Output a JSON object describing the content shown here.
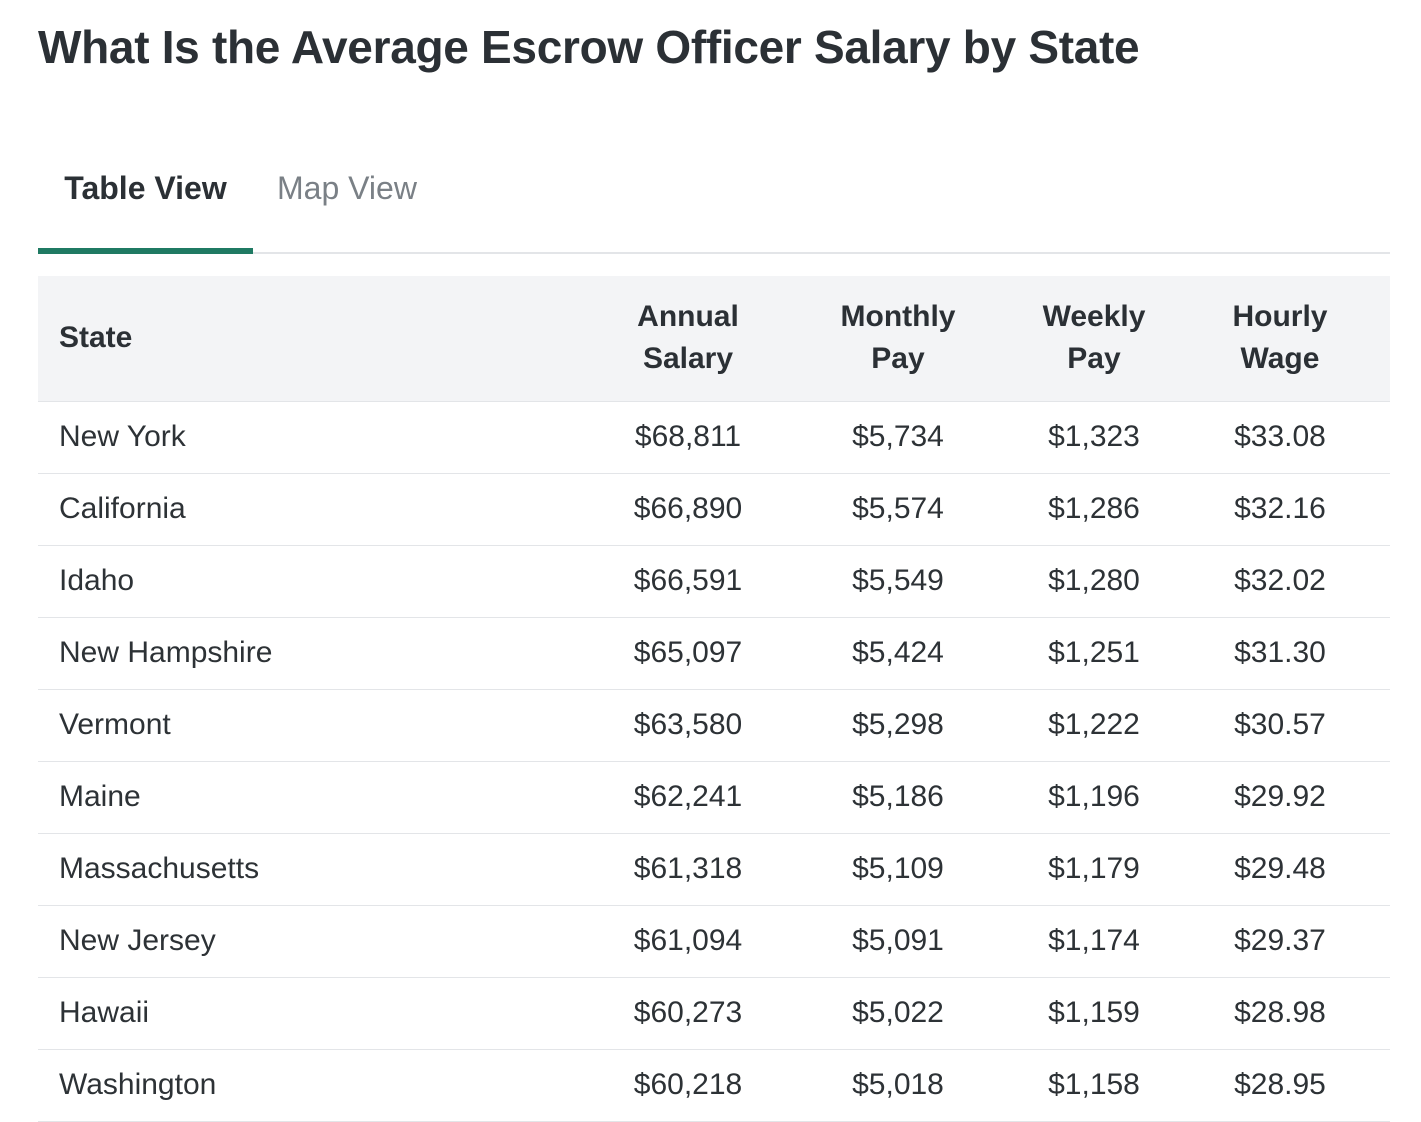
{
  "page": {
    "title": "What Is the Average Escrow Officer Salary by State"
  },
  "tabs": [
    {
      "label": "Table View",
      "active": true
    },
    {
      "label": "Map View",
      "active": false
    }
  ],
  "table": {
    "headers": {
      "state": "State",
      "annual_line1": "Annual",
      "annual_line2": "Salary",
      "monthly_line1": "Monthly",
      "monthly_line2": "Pay",
      "weekly_line1": "Weekly",
      "weekly_line2": "Pay",
      "hourly_line1": "Hourly",
      "hourly_line2": "Wage"
    },
    "rows": [
      {
        "state": "New York",
        "annual": "$68,811",
        "monthly": "$5,734",
        "weekly": "$1,323",
        "hourly": "$33.08"
      },
      {
        "state": "California",
        "annual": "$66,890",
        "monthly": "$5,574",
        "weekly": "$1,286",
        "hourly": "$32.16"
      },
      {
        "state": "Idaho",
        "annual": "$66,591",
        "monthly": "$5,549",
        "weekly": "$1,280",
        "hourly": "$32.02"
      },
      {
        "state": "New Hampshire",
        "annual": "$65,097",
        "monthly": "$5,424",
        "weekly": "$1,251",
        "hourly": "$31.30"
      },
      {
        "state": "Vermont",
        "annual": "$63,580",
        "monthly": "$5,298",
        "weekly": "$1,222",
        "hourly": "$30.57"
      },
      {
        "state": "Maine",
        "annual": "$62,241",
        "monthly": "$5,186",
        "weekly": "$1,196",
        "hourly": "$29.92"
      },
      {
        "state": "Massachusetts",
        "annual": "$61,318",
        "monthly": "$5,109",
        "weekly": "$1,179",
        "hourly": "$29.48"
      },
      {
        "state": "New Jersey",
        "annual": "$61,094",
        "monthly": "$5,091",
        "weekly": "$1,174",
        "hourly": "$29.37"
      },
      {
        "state": "Hawaii",
        "annual": "$60,273",
        "monthly": "$5,022",
        "weekly": "$1,159",
        "hourly": "$28.98"
      },
      {
        "state": "Washington",
        "annual": "$60,218",
        "monthly": "$5,018",
        "weekly": "$1,158",
        "hourly": "$28.95"
      }
    ]
  },
  "colors": {
    "accent": "#1f7a63",
    "header_bg": "#f3f4f6",
    "text": "#2d3236",
    "muted": "#7a8086"
  }
}
